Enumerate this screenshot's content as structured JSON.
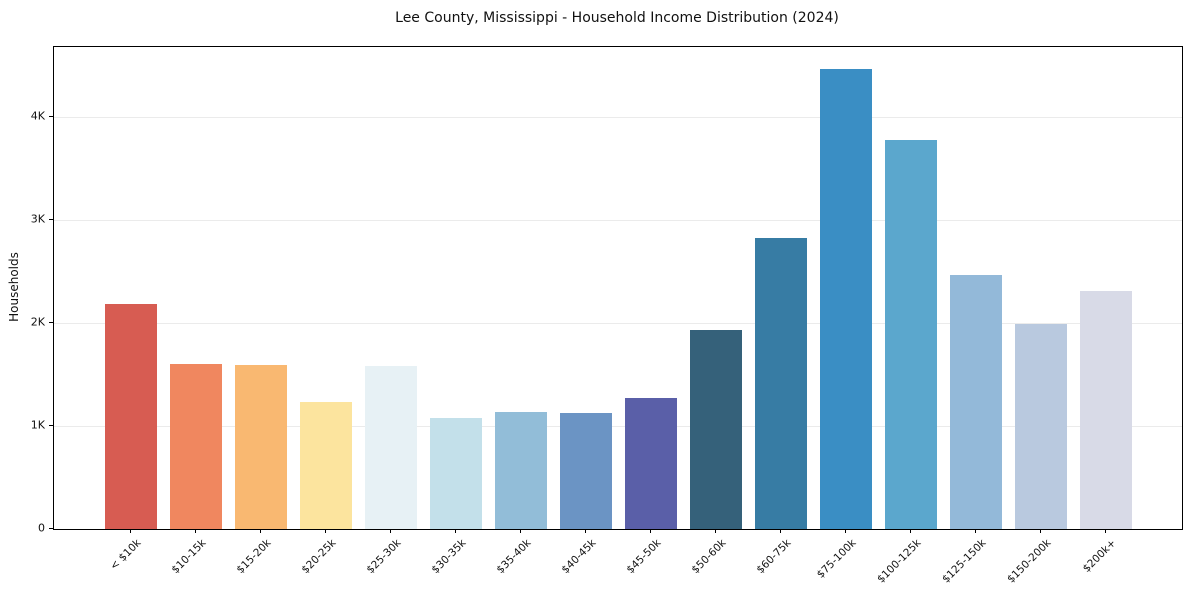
{
  "chart_data": {
    "type": "bar",
    "title": "Lee County, Mississippi - Household Income Distribution (2024)",
    "xlabel": "",
    "ylabel": "Households",
    "categories": [
      "< $10k",
      "$10-15k",
      "$15-20k",
      "$20-25k",
      "$25-30k",
      "$30-35k",
      "$35-40k",
      "$40-45k",
      "$45-50k",
      "$50-60k",
      "$60-75k",
      "$75-100k",
      "$100-125k",
      "$125-150k",
      "$150-200k",
      "$200k+"
    ],
    "values": [
      2180,
      1600,
      1590,
      1230,
      1580,
      1080,
      1140,
      1130,
      1270,
      1930,
      2830,
      4470,
      3780,
      2470,
      1990,
      2310
    ],
    "bar_colors": [
      "#d75c52",
      "#f0875f",
      "#f9b871",
      "#fce49e",
      "#e7f1f5",
      "#c3e0ea",
      "#92bdd8",
      "#6b94c4",
      "#5a5fa8",
      "#35617a",
      "#377ca4",
      "#3a8ec4",
      "#5ba7cd",
      "#93b9d9",
      "#b9c9df",
      "#d8dae7"
    ],
    "yticks": [
      {
        "label": "0",
        "value": 0
      },
      {
        "label": "1K",
        "value": 1000
      },
      {
        "label": "2K",
        "value": 2000
      },
      {
        "label": "3K",
        "value": 3000
      },
      {
        "label": "4K",
        "value": 4000
      }
    ],
    "ylim": [
      0,
      4680
    ],
    "grid": "horizontal",
    "legend": "none",
    "grid_color": "#ebebeb",
    "spine_color": "#000000",
    "background_color": "#ffffff"
  }
}
